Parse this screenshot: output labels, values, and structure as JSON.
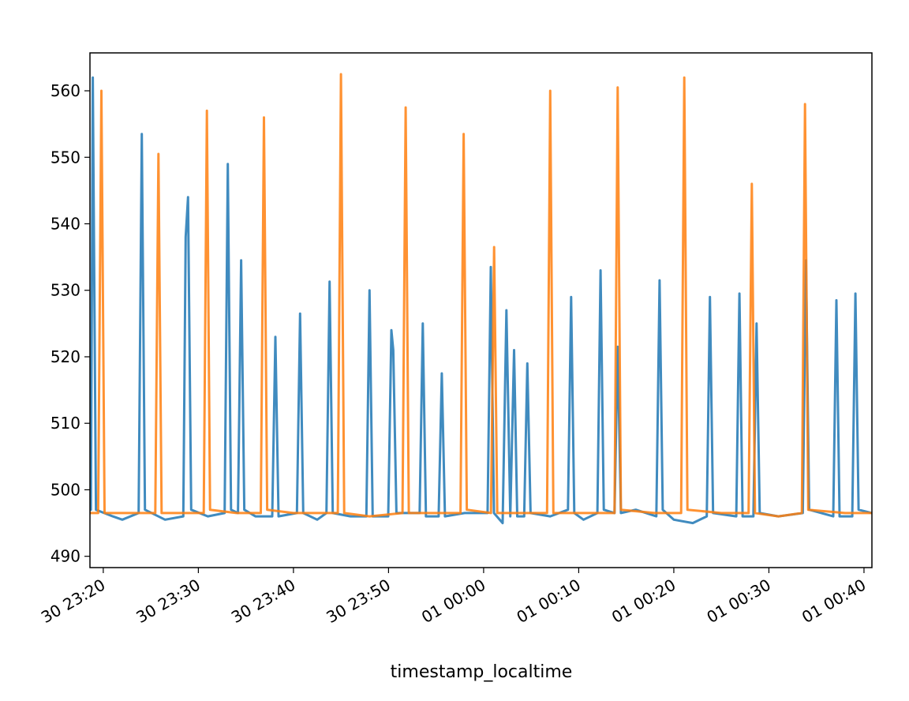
{
  "chart_data": {
    "type": "line",
    "xlabel": "timestamp_localtime",
    "xlim": [
      "30 23:18:36",
      "01 00:40:50"
    ],
    "xticks": [
      "30 23:20",
      "30 23:30",
      "30 23:40",
      "30 23:50",
      "01 00:00",
      "01 00:10",
      "01 00:20",
      "01 00:30",
      "01 00:40"
    ],
    "ylim": [
      488.3,
      565.7
    ],
    "yticks": [
      490,
      500,
      510,
      520,
      530,
      540,
      550,
      560
    ],
    "series": [
      {
        "color": "#1f77b4",
        "x": [
          "30 23:18:36",
          "30 23:18:42",
          "30 23:18:54",
          "30 23:19:14",
          "30 23:21:00",
          "30 23:22:00",
          "30 23:23:43",
          "30 23:24:03",
          "30 23:24:23",
          "30 23:26:30",
          "30 23:28:25",
          "30 23:28:40",
          "30 23:28:55",
          "30 23:29:15",
          "30 23:31:00",
          "30 23:32:46",
          "30 23:33:06",
          "30 23:33:26",
          "30 23:34:10",
          "30 23:34:30",
          "30 23:34:50",
          "30 23:36:00",
          "30 23:37:46",
          "30 23:38:06",
          "30 23:38:26",
          "30 23:40:22",
          "30 23:40:42",
          "30 23:41:02",
          "30 23:42:30",
          "30 23:43:28",
          "30 23:43:48",
          "30 23:44:08",
          "30 23:46:00",
          "30 23:47:40",
          "30 23:48:00",
          "30 23:48:20",
          "30 23:49:58",
          "30 23:50:18",
          "30 23:50:30",
          "30 23:50:50",
          "30 23:53:16",
          "30 23:53:36",
          "30 23:53:56",
          "30 23:55:16",
          "30 23:55:36",
          "30 23:55:56",
          "30 23:58:00",
          "01 00:00:25",
          "01 00:00:45",
          "01 00:01:05",
          "01 00:02:00",
          "01 00:02:24",
          "01 00:02:48",
          "01 00:03:12",
          "01 00:03:32",
          "01 00:04:16",
          "01 00:04:36",
          "01 00:04:56",
          "01 00:07:00",
          "01 00:08:52",
          "01 00:09:12",
          "01 00:09:32",
          "01 00:10:30",
          "01 00:11:58",
          "01 00:12:18",
          "01 00:12:38",
          "01 00:13:46",
          "01 00:14:06",
          "01 00:14:26",
          "01 00:16:00",
          "01 00:18:10",
          "01 00:18:30",
          "01 00:18:50",
          "01 00:20:00",
          "01 00:22:00",
          "01 00:23:28",
          "01 00:23:48",
          "01 00:24:08",
          "01 00:26:34",
          "01 00:26:54",
          "01 00:27:14",
          "01 00:28:22",
          "01 00:28:42",
          "01 00:29:02",
          "01 00:31:00",
          "01 00:33:34",
          "01 00:33:54",
          "01 00:34:14",
          "01 00:36:46",
          "01 00:37:06",
          "01 00:37:26",
          "01 00:38:46",
          "01 00:39:06",
          "01 00:39:26",
          "01 00:40:50"
        ],
        "values": [
          497,
          497,
          562,
          497,
          496,
          495.5,
          496.5,
          553.5,
          497,
          495.5,
          496,
          538,
          544,
          497,
          496,
          496.5,
          549,
          497,
          496.5,
          534.5,
          497,
          496,
          496,
          523,
          496,
          496.5,
          526.5,
          496.5,
          495.5,
          496.5,
          531.3,
          496.5,
          496,
          496,
          530,
          496,
          496,
          524,
          521,
          496.5,
          496.5,
          525,
          496,
          496,
          517.5,
          496,
          496.5,
          496.5,
          533.5,
          496.5,
          495,
          527,
          496,
          521,
          496,
          496,
          519,
          496.5,
          496,
          497,
          529,
          496.5,
          495.5,
          496.5,
          533,
          497,
          496.5,
          521.5,
          496.5,
          497,
          496,
          531.5,
          497,
          495.5,
          495,
          496,
          529,
          496.5,
          496,
          529.5,
          496,
          496,
          525,
          496.5,
          496,
          496.5,
          534.5,
          497,
          496,
          528.5,
          496,
          496,
          529.5,
          497,
          496.5
        ]
      },
      {
        "color": "#ff7f0e",
        "x": [
          "30 23:18:36",
          "30 23:19:28",
          "30 23:19:48",
          "30 23:20:08",
          "30 23:23:00",
          "30 23:25:28",
          "30 23:25:48",
          "30 23:26:08",
          "30 23:28:00",
          "30 23:30:34",
          "30 23:30:54",
          "30 23:31:14",
          "30 23:34:00",
          "30 23:36:34",
          "30 23:36:54",
          "30 23:37:14",
          "30 23:40:00",
          "30 23:44:40",
          "30 23:45:00",
          "30 23:45:20",
          "30 23:48:00",
          "30 23:51:28",
          "30 23:51:48",
          "30 23:52:08",
          "30 23:55:00",
          "30 23:57:34",
          "30 23:57:54",
          "30 23:58:14",
          "01 00:00:46",
          "01 00:01:06",
          "01 00:01:26",
          "01 00:04:00",
          "01 00:06:40",
          "01 00:07:00",
          "01 00:07:20",
          "01 00:11:00",
          "01 00:13:46",
          "01 00:14:06",
          "01 00:14:26",
          "01 00:18:00",
          "01 00:20:46",
          "01 00:21:06",
          "01 00:21:26",
          "01 00:25:00",
          "01 00:27:52",
          "01 00:28:12",
          "01 00:28:32",
          "01 00:31:00",
          "01 00:33:28",
          "01 00:33:48",
          "01 00:34:08",
          "01 00:38:00",
          "01 00:40:50"
        ],
        "values": [
          496.5,
          496.5,
          560,
          496.5,
          496.5,
          496.5,
          550.5,
          496.5,
          496.5,
          496.5,
          557,
          497,
          496.5,
          496.5,
          556,
          497,
          496.5,
          496.5,
          562.5,
          496.5,
          496,
          496.5,
          557.5,
          496.5,
          496.5,
          496.5,
          553.5,
          497,
          496.5,
          536.5,
          496.5,
          496.5,
          496.5,
          560,
          496.5,
          496.5,
          496.5,
          560.5,
          497,
          496.5,
          496.5,
          562,
          497,
          496.5,
          496.5,
          546,
          496.5,
          496,
          496.5,
          558,
          497,
          496.5,
          496.5
        ]
      }
    ]
  }
}
